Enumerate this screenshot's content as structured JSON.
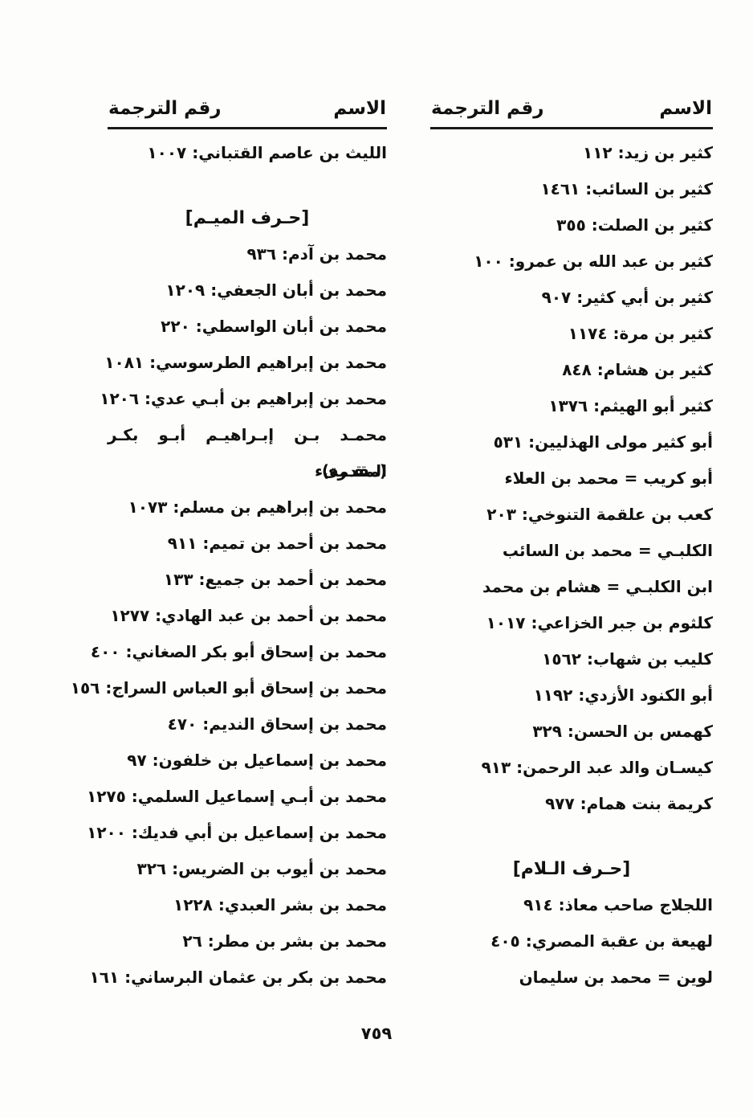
{
  "page_number": "٧٥٩",
  "columns": [
    {
      "position": "right",
      "header": {
        "name_label": "الاسم",
        "number_label": "رقم الترجمة"
      },
      "entries": [
        "كثير بن زيد: ١١٢",
        "كثير بن السائب: ١٤٦١",
        "كثير بن الصلت: ٣٥٥",
        "كثير بن عبد الله بن عمرو: ١٠٠",
        "كثير بن أبي كثير: ٩٠٧",
        "كثير بن مرة: ١١٧٤",
        "كثير بن هشام: ٨٤٨",
        "كثير أبو الهيثم: ١٣٧٦",
        "أبو كثير مولى الهذليين: ٥٣١",
        "أبو كريب = محمد بن العلاء",
        "كعب بن علقمة التنوخي: ٢٠٣",
        "الكلبـي = محمد بن السائب",
        "ابن الكلبـي = هشام بن محمد",
        "كلثوم بن جبر الخزاعي: ١٠١٧",
        "كليب بن شهاب: ١٥٦٢",
        "أبو الكنود الأزدي: ١١٩٢",
        "كهمس بن الحسن: ٣٢٩",
        "كيسـان والد عبد الرحمن: ٩١٣",
        "كريمة بنت همام: ٩٧٧",
        "[حـرف الـلام]",
        "اللجلاج صاحب معاذ: ٩١٤",
        "لهيعة بن عقبة المصري: ٤٠٥",
        "لوين = محمد بن سليمان"
      ]
    },
    {
      "position": "left",
      "header": {
        "name_label": "الاسم",
        "number_label": "رقم الترجمة"
      },
      "entries": [
        "الليث بن عاصم القتباني: ١٠٠٧",
        "[حـرف الميـم]",
        "محمد بن آدم: ٩٣٦",
        "محمد بن أبان الجعفي: ١٢٠٩",
        "محمد بن أبان الواسطي: ٢٢٠",
        "محمد بن إبراهيم الطرسوسي: ١٠٨١",
        "محمد بن إبراهيم بن أبـي عدي: ١٢٠٦",
        "محمـد بـن إبـراهيـم أبـو بكـر المقـرىء",
        "(مقدمة)",
        "محمد بن إبراهيم بن مسلم: ١٠٧٣",
        "محمد بن أحمد بن تميم: ٩١١",
        "محمد بن أحمد بن جميع: ١٣٣",
        "محمد بن أحمد بن عبد الهادي: ١٢٧٧",
        "محمد بن إسحاق أبو بكر الصغاني: ٤٠٠",
        "محمد بن إسحاق أبو العباس السراج: ١٥٦",
        "محمد بن إسحاق النديم: ٤٧٠",
        "محمد بن إسماعيل بن خلفون: ٩٧",
        "محمد بن أبـي إسماعيل السلمي: ١٢٧٥",
        "محمد بن إسماعيل بن أبي فديك: ١٢٠٠",
        "محمد بن أيوب بن الضريس: ٣٢٦",
        "محمد بن بشر العبدي: ١٢٢٨",
        "محمد بن بشر بن مطر: ٢٦",
        "محمد بن بكر بن عثمان البرساني: ١٦١"
      ]
    }
  ]
}
